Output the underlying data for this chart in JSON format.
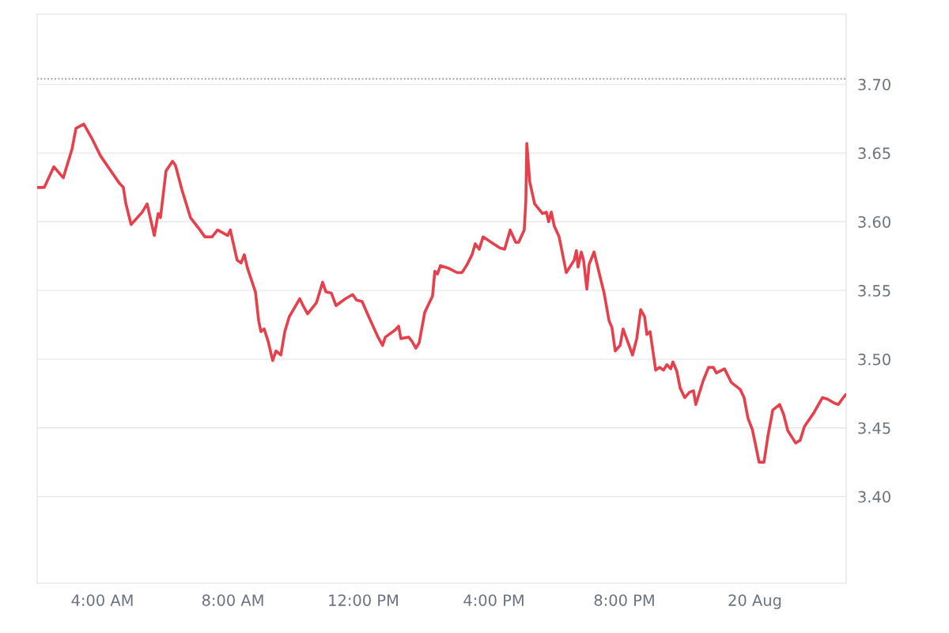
{
  "chart_data": {
    "type": "line",
    "x": [
      2.0,
      2.22,
      2.51,
      2.8,
      3.07,
      3.19,
      3.43,
      3.67,
      3.94,
      4.23,
      4.52,
      4.64,
      4.72,
      4.88,
      5.22,
      5.37,
      5.59,
      5.71,
      5.78,
      5.95,
      6.15,
      6.24,
      6.44,
      6.7,
      6.99,
      7.14,
      7.36,
      7.53,
      7.84,
      7.92,
      8.13,
      8.25,
      8.35,
      8.45,
      8.69,
      8.79,
      8.86,
      8.96,
      9.08,
      9.22,
      9.32,
      9.47,
      9.59,
      9.73,
      10.05,
      10.15,
      10.29,
      10.56,
      10.75,
      10.85,
      11.02,
      11.16,
      11.45,
      11.67,
      11.79,
      11.96,
      12.18,
      12.45,
      12.59,
      12.67,
      12.96,
      13.08,
      13.15,
      13.39,
      13.49,
      13.61,
      13.71,
      13.88,
      14.12,
      14.19,
      14.27,
      14.36,
      14.63,
      14.87,
      15.02,
      15.16,
      15.33,
      15.43,
      15.55,
      15.67,
      15.92,
      16.18,
      16.33,
      16.5,
      16.67,
      16.76,
      16.93,
      16.98,
      17.01,
      17.1,
      17.25,
      17.49,
      17.61,
      17.68,
      17.76,
      17.85,
      18.0,
      18.22,
      18.46,
      18.53,
      18.58,
      18.68,
      18.75,
      18.85,
      18.92,
      19.07,
      19.38,
      19.53,
      19.62,
      19.72,
      19.87,
      19.96,
      20.25,
      20.38,
      20.5,
      20.62,
      20.69,
      20.79,
      20.96,
      21.08,
      21.2,
      21.3,
      21.42,
      21.49,
      21.61,
      21.71,
      21.85,
      22.0,
      22.12,
      22.19,
      22.41,
      22.58,
      22.73,
      22.82,
      23.07,
      23.28,
      23.55,
      23.67,
      23.79,
      23.92,
      24.01,
      24.13,
      24.28,
      24.4,
      24.55,
      24.76,
      24.88,
      25.01,
      25.25,
      25.39,
      25.52,
      25.81,
      26.07,
      26.22,
      26.44,
      26.56,
      26.71,
      26.78
    ],
    "series": [
      {
        "color": "#e5404b",
        "values": [
          3.625,
          3.625,
          3.64,
          3.632,
          3.653,
          3.668,
          3.671,
          3.661,
          3.648,
          3.638,
          3.628,
          3.625,
          3.613,
          3.598,
          3.607,
          3.613,
          3.59,
          3.606,
          3.603,
          3.637,
          3.644,
          3.641,
          3.623,
          3.603,
          3.594,
          3.589,
          3.589,
          3.594,
          3.59,
          3.594,
          3.572,
          3.57,
          3.576,
          3.566,
          3.549,
          3.528,
          3.52,
          3.522,
          3.513,
          3.499,
          3.506,
          3.503,
          3.52,
          3.531,
          3.544,
          3.539,
          3.533,
          3.541,
          3.556,
          3.549,
          3.548,
          3.539,
          3.544,
          3.547,
          3.543,
          3.542,
          3.53,
          3.516,
          3.51,
          3.516,
          3.521,
          3.524,
          3.515,
          3.516,
          3.513,
          3.508,
          3.512,
          3.534,
          3.546,
          3.564,
          3.562,
          3.568,
          3.566,
          3.563,
          3.563,
          3.568,
          3.576,
          3.584,
          3.58,
          3.589,
          3.585,
          3.581,
          3.58,
          3.594,
          3.585,
          3.585,
          3.594,
          3.615,
          3.657,
          3.629,
          3.613,
          3.606,
          3.607,
          3.6,
          3.607,
          3.597,
          3.589,
          3.563,
          3.572,
          3.579,
          3.567,
          3.578,
          3.572,
          3.551,
          3.569,
          3.578,
          3.548,
          3.528,
          3.523,
          3.506,
          3.51,
          3.522,
          3.503,
          3.515,
          3.536,
          3.531,
          3.518,
          3.52,
          3.492,
          3.494,
          3.492,
          3.496,
          3.493,
          3.498,
          3.491,
          3.479,
          3.472,
          3.476,
          3.477,
          3.467,
          3.484,
          3.494,
          3.494,
          3.49,
          3.493,
          3.483,
          3.478,
          3.472,
          3.457,
          3.449,
          3.439,
          3.425,
          3.425,
          3.444,
          3.463,
          3.467,
          3.46,
          3.448,
          3.439,
          3.441,
          3.451,
          3.461,
          3.472,
          3.471,
          3.468,
          3.467,
          3.472,
          3.474
        ]
      }
    ],
    "xlim": [
      2.0,
      26.8
    ],
    "xticks": [
      {
        "value": 4,
        "label": "4:00 AM"
      },
      {
        "value": 8,
        "label": "8:00 AM"
      },
      {
        "value": 12,
        "label": "12:00 PM"
      },
      {
        "value": 16,
        "label": "4:00 PM"
      },
      {
        "value": 20,
        "label": "8:00 PM"
      },
      {
        "value": 24,
        "label": "20 Aug"
      }
    ],
    "ylim": [
      3.337,
      3.751
    ],
    "yticks": [
      {
        "value": 3.4,
        "label": "3.40"
      },
      {
        "value": 3.45,
        "label": "3.45"
      },
      {
        "value": 3.5,
        "label": "3.50"
      },
      {
        "value": 3.55,
        "label": "3.55"
      },
      {
        "value": 3.6,
        "label": "3.60"
      },
      {
        "value": 3.65,
        "label": "3.65"
      },
      {
        "value": 3.7,
        "label": "3.70"
      }
    ],
    "grid": "y",
    "ref_lines": [
      {
        "axis": "y",
        "value": 3.704,
        "color": "#888888",
        "line_style": "dotted"
      }
    ]
  }
}
